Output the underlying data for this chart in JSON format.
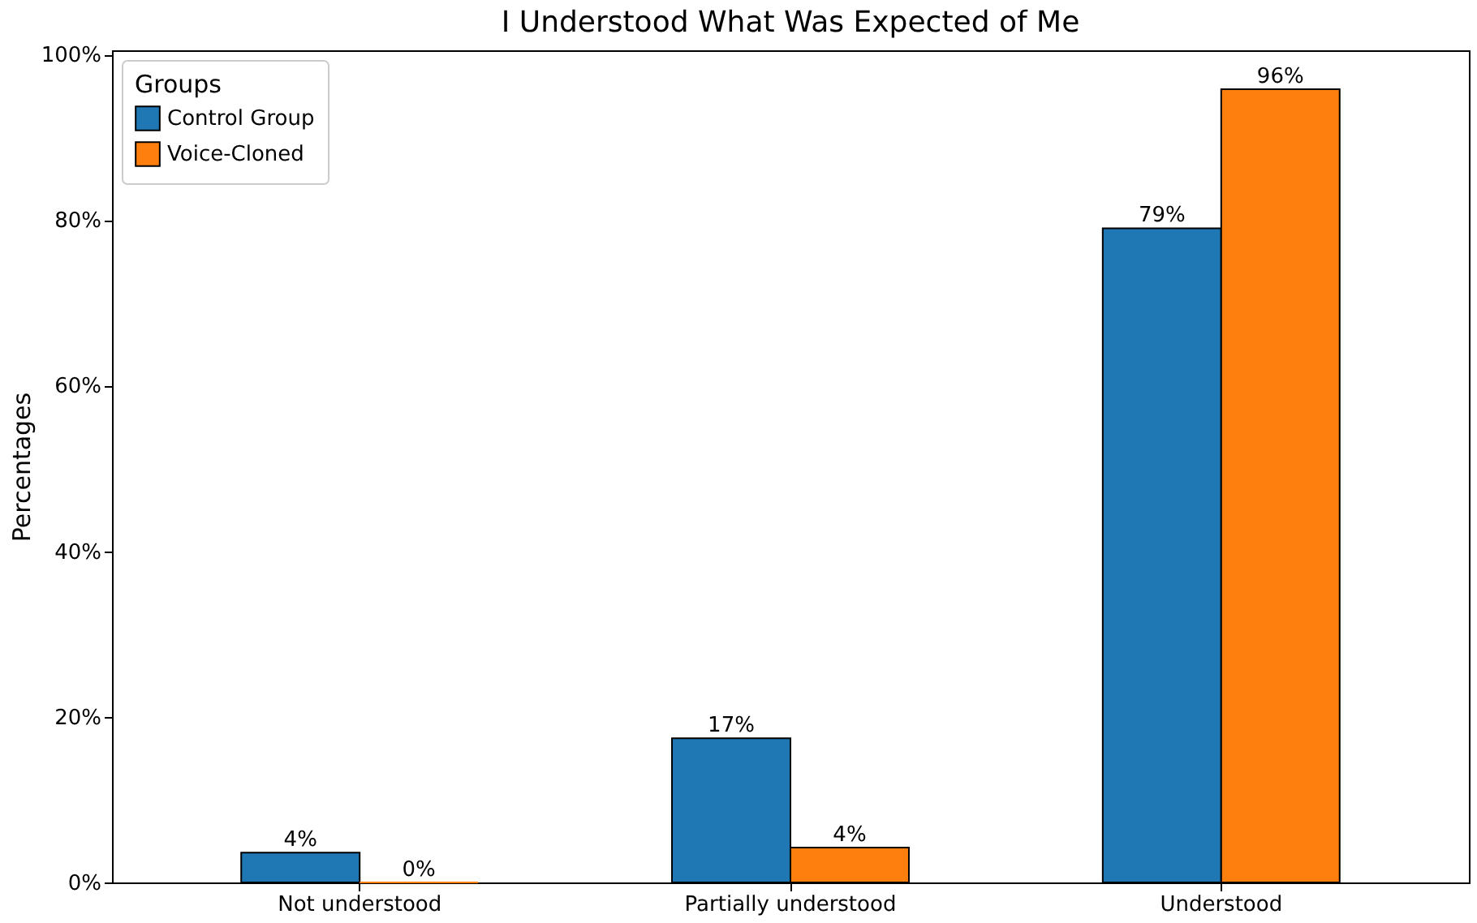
{
  "chart_data": {
    "type": "bar",
    "title": "I Understood What Was Expected of Me",
    "ylabel": "Percentages",
    "legend_title": "Groups",
    "legend": "top left",
    "grid": false,
    "categories": [
      "Not understood",
      "Partially understood",
      "Understood"
    ],
    "ylim": [
      0,
      100.5
    ],
    "yticks": [
      {
        "value": 0,
        "label": "0%"
      },
      {
        "value": 20,
        "label": "20%"
      },
      {
        "value": 40,
        "label": "40%"
      },
      {
        "value": 60,
        "label": "60%"
      },
      {
        "value": 80,
        "label": "80%"
      },
      {
        "value": 100,
        "label": "100%"
      }
    ],
    "series": [
      {
        "name": "Control Group",
        "color": "#1f77b4",
        "values": [
          3.6,
          17.4,
          79.0
        ],
        "value_labels": [
          "4%",
          "17%",
          "79%"
        ]
      },
      {
        "name": "Voice-Cloned",
        "color": "#ff7f0e",
        "values": [
          0,
          4.2,
          95.8
        ],
        "value_labels": [
          "0%",
          "4%",
          "96%"
        ]
      }
    ]
  }
}
